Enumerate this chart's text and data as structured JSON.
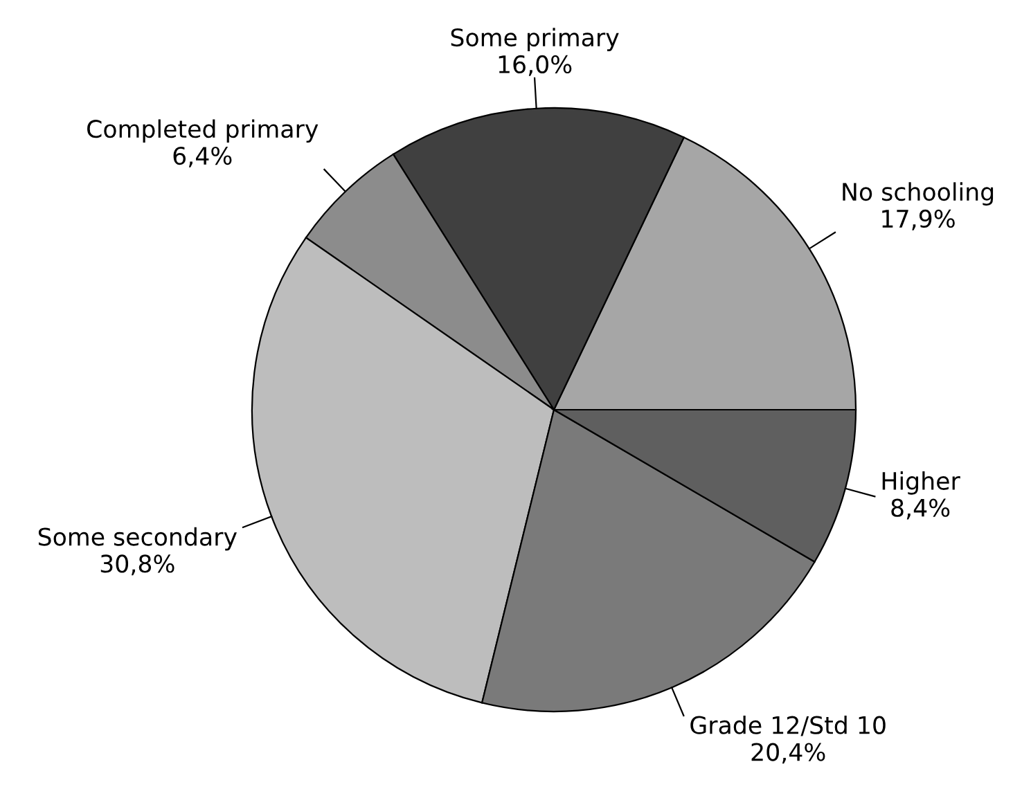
{
  "chart_data": {
    "type": "pie",
    "categories": [
      "No schooling",
      "Some primary",
      "Completed primary",
      "Some secondary",
      "Grade 12/Std 10",
      "Higher"
    ],
    "values": [
      17.9,
      16.0,
      6.4,
      30.8,
      20.4,
      8.4
    ],
    "value_labels": [
      "17,9%",
      "16,0%",
      "6,4%",
      "30,8%",
      "20,4%",
      "8,4%"
    ],
    "colors": [
      "#a6a6a6",
      "#404040",
      "#8c8c8c",
      "#bdbdbd",
      "#7a7a7a",
      "#5f5f5f"
    ]
  }
}
